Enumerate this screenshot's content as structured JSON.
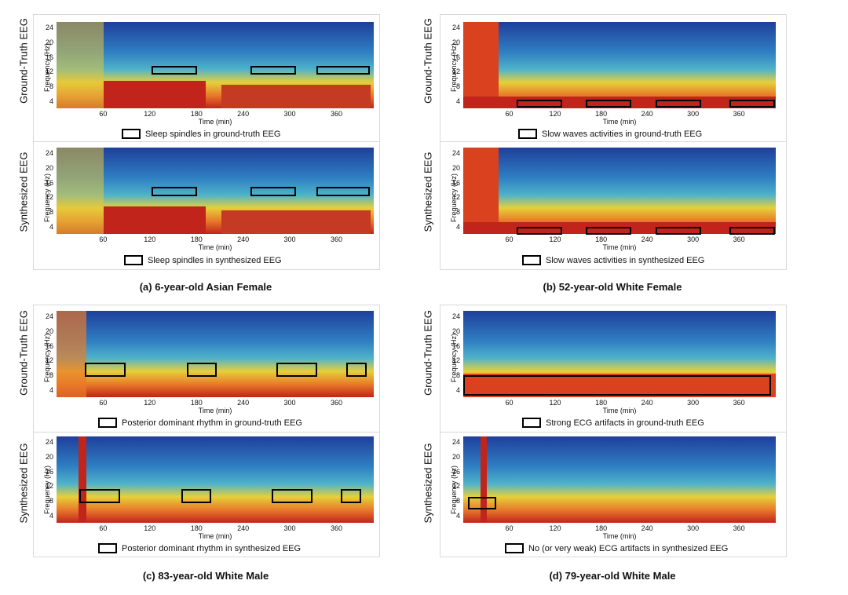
{
  "figure": {
    "panels": [
      {
        "id": "a",
        "caption": "(a) 6-year-old Asian Female",
        "rows": [
          {
            "label": "Ground-Truth EEG",
            "legend": "Sleep spindles in ground-truth EEG"
          },
          {
            "label": "Synthesized EEG",
            "legend": "Sleep spindles in synthesized EEG"
          }
        ]
      },
      {
        "id": "b",
        "caption": "(b) 52-year-old White Female",
        "rows": [
          {
            "label": "Ground-Truth EEG",
            "legend": "Slow waves activities in ground-truth EEG"
          },
          {
            "label": "Synthesized EEG",
            "legend": "Slow waves activities in synthesized EEG"
          }
        ]
      },
      {
        "id": "c",
        "caption": "(c) 83-year-old White Male",
        "rows": [
          {
            "label": "Ground-Truth EEG",
            "legend": "Posterior dominant rhythm in ground-truth EEG"
          },
          {
            "label": "Synthesized EEG",
            "legend": "Posterior dominant rhythm in synthesized EEG"
          }
        ]
      },
      {
        "id": "d",
        "caption": "(d) 79-year-old White Male",
        "rows": [
          {
            "label": "Ground-Truth EEG",
            "legend": "Strong ECG artifacts in ground-truth EEG"
          },
          {
            "label": "Synthesized EEG",
            "legend": "No (or very weak) ECG artifacts in synthesized EEG"
          }
        ]
      }
    ],
    "axes": {
      "ylabel": "Frequency (Hz)",
      "xlabel": "Time (min)",
      "yticks": [
        "24",
        "20",
        "16",
        "12",
        "8",
        "4"
      ],
      "xticks": [
        "60",
        "120",
        "180",
        "240",
        "300",
        "360"
      ]
    },
    "colors": {
      "low": "#1f3f9c",
      "mid": "#4fb3c9",
      "high": "#e6d03a",
      "peak": "#c0241b"
    }
  }
}
